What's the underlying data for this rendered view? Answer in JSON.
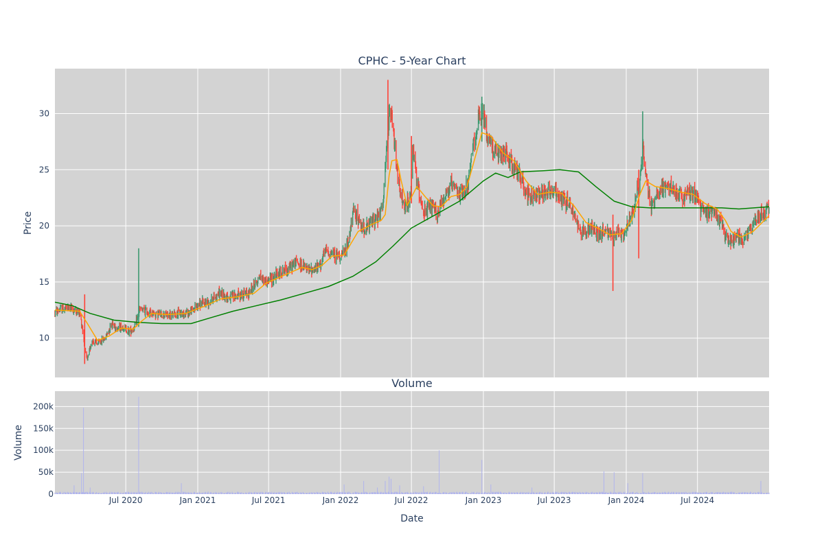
{
  "chart_data": [
    {
      "type": "candlestick",
      "title": "CPHC - 5-Year Chart",
      "ylabel": "Price",
      "ylim": [
        6.5,
        34
      ],
      "yticks": [
        10,
        15,
        20,
        25,
        30
      ],
      "grid": true,
      "background": "#d3d3d3",
      "colors": {
        "up": "#3d9970",
        "down": "#ff4136",
        "ma_short": "#ffa500",
        "ma_long": "#008000"
      },
      "x_start": "2020-01-02",
      "x_end": "2024-12-31",
      "xticks": [
        "Jul 2020",
        "Jan 2021",
        "Jul 2021",
        "Jan 2022",
        "Jul 2022",
        "Jan 2023",
        "Jul 2023",
        "Jan 2024",
        "Jul 2024"
      ],
      "xtick_dates": [
        "2020-07-01",
        "2021-01-01",
        "2021-07-01",
        "2022-01-01",
        "2022-07-01",
        "2023-01-01",
        "2023-07-01",
        "2024-01-01",
        "2024-07-01"
      ],
      "close_path": [
        [
          "2020-01-02",
          12.3
        ],
        [
          "2020-01-20",
          12.6
        ],
        [
          "2020-02-10",
          12.7
        ],
        [
          "2020-02-20",
          12.5
        ],
        [
          "2020-03-05",
          12.2
        ],
        [
          "2020-03-12",
          11.0
        ],
        [
          "2020-03-20",
          8.5
        ],
        [
          "2020-03-25",
          8.0
        ],
        [
          "2020-04-05",
          9.8
        ],
        [
          "2020-04-20",
          9.5
        ],
        [
          "2020-05-10",
          10.0
        ],
        [
          "2020-05-25",
          11.3
        ],
        [
          "2020-06-10",
          10.9
        ],
        [
          "2020-06-25",
          11.0
        ],
        [
          "2020-07-10",
          10.6
        ],
        [
          "2020-07-25",
          11.0
        ],
        [
          "2020-08-05",
          12.5
        ],
        [
          "2020-08-20",
          12.4
        ],
        [
          "2020-09-10",
          12.2
        ],
        [
          "2020-10-01",
          12.1
        ],
        [
          "2020-10-20",
          12.0
        ],
        [
          "2020-11-15",
          12.2
        ],
        [
          "2020-12-10",
          12.3
        ],
        [
          "2021-01-05",
          13.0
        ],
        [
          "2021-02-01",
          13.3
        ],
        [
          "2021-02-25",
          14.0
        ],
        [
          "2021-03-20",
          13.6
        ],
        [
          "2021-04-15",
          13.8
        ],
        [
          "2021-05-10",
          14.0
        ],
        [
          "2021-06-10",
          15.5
        ],
        [
          "2021-06-25",
          15.0
        ],
        [
          "2021-07-20",
          15.6
        ],
        [
          "2021-08-20",
          16.2
        ],
        [
          "2021-09-10",
          16.8
        ],
        [
          "2021-10-10",
          16.0
        ],
        [
          "2021-11-05",
          16.3
        ],
        [
          "2021-11-25",
          17.8
        ],
        [
          "2021-12-20",
          17.4
        ],
        [
          "2022-01-10",
          17.4
        ],
        [
          "2022-01-20",
          18.5
        ],
        [
          "2022-02-05",
          21.5
        ],
        [
          "2022-02-20",
          20.0
        ],
        [
          "2022-03-10",
          19.8
        ],
        [
          "2022-03-25",
          20.5
        ],
        [
          "2022-04-10",
          20.8
        ],
        [
          "2022-04-20",
          22.0
        ],
        [
          "2022-05-01",
          28.0
        ],
        [
          "2022-05-08",
          30.5
        ],
        [
          "2022-05-20",
          27.0
        ],
        [
          "2022-06-01",
          23.0
        ],
        [
          "2022-06-15",
          21.5
        ],
        [
          "2022-06-28",
          22.5
        ],
        [
          "2022-07-05",
          26.5
        ],
        [
          "2022-07-20",
          23.0
        ],
        [
          "2022-08-05",
          21.0
        ],
        [
          "2022-08-20",
          21.8
        ],
        [
          "2022-09-05",
          21.0
        ],
        [
          "2022-09-20",
          22.5
        ],
        [
          "2022-10-10",
          23.5
        ],
        [
          "2022-10-25",
          23.0
        ],
        [
          "2022-11-10",
          22.8
        ],
        [
          "2022-11-25",
          24.0
        ],
        [
          "2022-12-05",
          27.0
        ],
        [
          "2022-12-20",
          29.5
        ],
        [
          "2023-01-01",
          30.0
        ],
        [
          "2023-01-10",
          28.0
        ],
        [
          "2023-01-25",
          27.0
        ],
        [
          "2023-02-10",
          26.0
        ],
        [
          "2023-02-25",
          26.5
        ],
        [
          "2023-03-15",
          25.5
        ],
        [
          "2023-04-05",
          24.5
        ],
        [
          "2023-04-20",
          23.0
        ],
        [
          "2023-05-05",
          22.5
        ],
        [
          "2023-05-20",
          23.0
        ],
        [
          "2023-06-10",
          23.2
        ],
        [
          "2023-07-01",
          23.0
        ],
        [
          "2023-07-20",
          22.5
        ],
        [
          "2023-08-10",
          22.0
        ],
        [
          "2023-08-25",
          20.5
        ],
        [
          "2023-09-10",
          19.5
        ],
        [
          "2023-10-01",
          19.8
        ],
        [
          "2023-10-20",
          19.3
        ],
        [
          "2023-11-10",
          19.5
        ],
        [
          "2023-11-28",
          18.8
        ],
        [
          "2023-12-10",
          19.5
        ],
        [
          "2023-12-25",
          19.0
        ],
        [
          "2024-01-10",
          20.5
        ],
        [
          "2024-01-25",
          22.5
        ],
        [
          "2024-02-05",
          24.0
        ],
        [
          "2024-02-12",
          27.5
        ],
        [
          "2024-02-20",
          24.5
        ],
        [
          "2024-03-05",
          21.5
        ],
        [
          "2024-03-20",
          23.0
        ],
        [
          "2024-04-10",
          23.5
        ],
        [
          "2024-05-01",
          23.2
        ],
        [
          "2024-05-20",
          22.5
        ],
        [
          "2024-06-10",
          23.0
        ],
        [
          "2024-06-25",
          22.8
        ],
        [
          "2024-07-10",
          21.5
        ],
        [
          "2024-07-25",
          21.0
        ],
        [
          "2024-08-10",
          21.5
        ],
        [
          "2024-08-25",
          20.8
        ],
        [
          "2024-09-10",
          19.0
        ],
        [
          "2024-09-25",
          18.6
        ],
        [
          "2024-10-10",
          19.0
        ],
        [
          "2024-10-25",
          18.8
        ],
        [
          "2024-11-10",
          19.5
        ],
        [
          "2024-11-25",
          20.5
        ],
        [
          "2024-12-10",
          21.0
        ],
        [
          "2024-12-31",
          21.5
        ]
      ],
      "ma_short": [
        [
          "2020-01-02",
          12.5
        ],
        [
          "2020-03-05",
          12.4
        ],
        [
          "2020-03-25",
          11.3
        ],
        [
          "2020-04-20",
          9.8
        ],
        [
          "2020-05-20",
          10.2
        ],
        [
          "2020-06-20",
          10.9
        ],
        [
          "2020-07-20",
          10.8
        ],
        [
          "2020-08-10",
          11.5
        ],
        [
          "2020-09-05",
          12.2
        ],
        [
          "2020-10-15",
          12.1
        ],
        [
          "2020-12-01",
          12.2
        ],
        [
          "2021-01-15",
          12.8
        ],
        [
          "2021-03-01",
          13.5
        ],
        [
          "2021-04-15",
          13.7
        ],
        [
          "2021-05-25",
          14.0
        ],
        [
          "2021-06-25",
          14.9
        ],
        [
          "2021-08-10",
          15.6
        ],
        [
          "2021-09-25",
          16.3
        ],
        [
          "2021-10-20",
          16.1
        ],
        [
          "2021-11-15",
          16.5
        ],
        [
          "2021-12-10",
          17.3
        ],
        [
          "2022-01-10",
          17.4
        ],
        [
          "2022-02-15",
          19.5
        ],
        [
          "2022-03-20",
          20.1
        ],
        [
          "2022-04-15",
          20.5
        ],
        [
          "2022-04-25",
          21.0
        ],
        [
          "2022-05-05",
          24.5
        ],
        [
          "2022-05-12",
          25.8
        ],
        [
          "2022-05-25",
          25.9
        ],
        [
          "2022-06-05",
          24.0
        ],
        [
          "2022-06-20",
          21.8
        ],
        [
          "2022-07-15",
          23.5
        ],
        [
          "2022-08-05",
          22.6
        ],
        [
          "2022-08-25",
          21.8
        ],
        [
          "2022-09-15",
          21.7
        ],
        [
          "2022-10-10",
          22.6
        ],
        [
          "2022-11-01",
          22.8
        ],
        [
          "2022-11-20",
          23.5
        ],
        [
          "2022-12-10",
          26.0
        ],
        [
          "2022-12-28",
          28.3
        ],
        [
          "2023-01-20",
          28.0
        ],
        [
          "2023-02-20",
          26.5
        ],
        [
          "2023-03-20",
          25.8
        ],
        [
          "2023-04-20",
          24.0
        ],
        [
          "2023-05-20",
          22.8
        ],
        [
          "2023-06-20",
          23.0
        ],
        [
          "2023-07-20",
          22.9
        ],
        [
          "2023-08-20",
          21.8
        ],
        [
          "2023-09-20",
          20.3
        ],
        [
          "2023-10-20",
          19.8
        ],
        [
          "2023-11-20",
          19.2
        ],
        [
          "2023-12-20",
          19.3
        ],
        [
          "2024-01-15",
          20.5
        ],
        [
          "2024-02-05",
          22.8
        ],
        [
          "2024-02-20",
          24.0
        ],
        [
          "2024-03-15",
          23.5
        ],
        [
          "2024-04-20",
          23.3
        ],
        [
          "2024-05-20",
          23.0
        ],
        [
          "2024-06-20",
          22.8
        ],
        [
          "2024-07-20",
          22.0
        ],
        [
          "2024-08-20",
          21.5
        ],
        [
          "2024-09-10",
          20.5
        ],
        [
          "2024-09-25",
          19.5
        ],
        [
          "2024-10-20",
          19.0
        ],
        [
          "2024-11-20",
          19.5
        ],
        [
          "2024-12-31",
          20.9
        ]
      ],
      "ma_long": [
        [
          "2020-01-02",
          13.2
        ],
        [
          "2020-02-15",
          12.9
        ],
        [
          "2020-04-01",
          12.2
        ],
        [
          "2020-06-01",
          11.6
        ],
        [
          "2020-08-01",
          11.4
        ],
        [
          "2020-10-01",
          11.3
        ],
        [
          "2020-12-15",
          11.3
        ],
        [
          "2021-02-01",
          11.8
        ],
        [
          "2021-04-01",
          12.4
        ],
        [
          "2021-06-01",
          12.9
        ],
        [
          "2021-08-01",
          13.4
        ],
        [
          "2021-10-01",
          14.0
        ],
        [
          "2021-12-01",
          14.6
        ],
        [
          "2022-02-01",
          15.5
        ],
        [
          "2022-04-01",
          16.8
        ],
        [
          "2022-05-15",
          18.2
        ],
        [
          "2022-07-01",
          19.8
        ],
        [
          "2022-09-01",
          21.0
        ],
        [
          "2022-11-01",
          22.2
        ],
        [
          "2023-01-01",
          24.0
        ],
        [
          "2023-02-01",
          24.7
        ],
        [
          "2023-03-05",
          24.3
        ],
        [
          "2023-04-05",
          24.8
        ],
        [
          "2023-06-01",
          24.9
        ],
        [
          "2023-07-15",
          25.0
        ],
        [
          "2023-09-01",
          24.8
        ],
        [
          "2023-10-15",
          23.5
        ],
        [
          "2023-12-01",
          22.2
        ],
        [
          "2024-01-15",
          21.7
        ],
        [
          "2024-03-01",
          21.6
        ],
        [
          "2024-05-01",
          21.6
        ],
        [
          "2024-07-01",
          21.6
        ],
        [
          "2024-09-01",
          21.6
        ],
        [
          "2024-10-15",
          21.5
        ],
        [
          "2024-12-31",
          21.7
        ]
      ],
      "spikes": [
        [
          "2020-03-18",
          13.9,
          7.7
        ],
        [
          "2020-08-03",
          18.0,
          11.0
        ],
        [
          "2022-05-02",
          33.0,
          25.0
        ],
        [
          "2022-07-01",
          28.0,
          22.0
        ],
        [
          "2022-12-28",
          31.5,
          27.5
        ],
        [
          "2023-11-28",
          21.0,
          14.2
        ],
        [
          "2024-02-02",
          25.0,
          17.1
        ],
        [
          "2024-02-12",
          30.2,
          25.0
        ]
      ]
    },
    {
      "type": "bar",
      "title": "Volume",
      "ylabel": "Volume",
      "xlabel": "Date",
      "ylim": [
        0,
        235000
      ],
      "yticks": [
        0,
        50000,
        100000,
        150000,
        200000
      ],
      "ytick_labels": [
        "0",
        "50k",
        "100k",
        "150k",
        "200k"
      ],
      "bar_color": "#b0b4ee",
      "base_volume": 3000,
      "spikes": [
        [
          "2020-02-20",
          20000
        ],
        [
          "2020-03-10",
          48000
        ],
        [
          "2020-03-15",
          197000
        ],
        [
          "2020-04-01",
          15000
        ],
        [
          "2020-08-03",
          222000
        ],
        [
          "2020-11-20",
          25000
        ],
        [
          "2022-01-10",
          22000
        ],
        [
          "2022-03-01",
          30000
        ],
        [
          "2022-04-05",
          15000
        ],
        [
          "2022-04-25",
          30000
        ],
        [
          "2022-05-05",
          40000
        ],
        [
          "2022-05-10",
          35000
        ],
        [
          "2022-06-01",
          20000
        ],
        [
          "2022-08-01",
          18000
        ],
        [
          "2022-09-10",
          100000
        ],
        [
          "2022-12-28",
          78000
        ],
        [
          "2023-01-20",
          22000
        ],
        [
          "2023-05-05",
          15000
        ],
        [
          "2023-11-05",
          52000
        ],
        [
          "2023-12-01",
          50000
        ],
        [
          "2024-01-05",
          25000
        ],
        [
          "2024-02-12",
          48000
        ],
        [
          "2024-12-10",
          30000
        ]
      ]
    }
  ]
}
